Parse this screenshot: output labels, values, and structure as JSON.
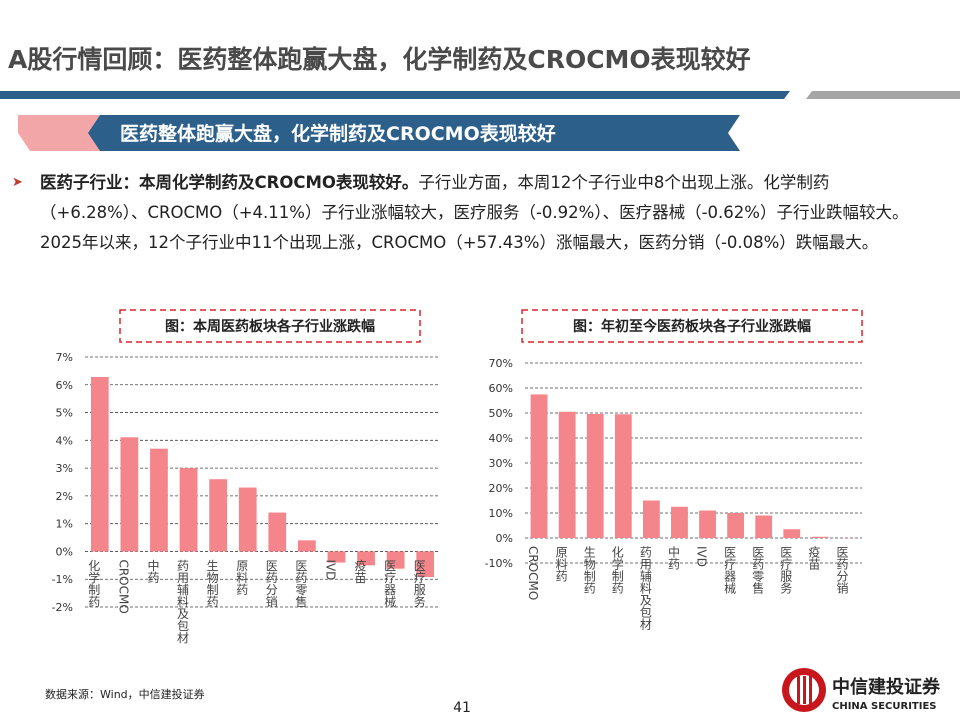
{
  "header": {
    "title": "A股行情回顾：医药整体跑赢大盘，化学制药及CROCMO表现较好"
  },
  "banner": "医药整体跑赢大盘，化学制药及CROCMO表现较好",
  "bullet": {
    "lead": "医药子行业：本周化学制药及CROCMO表现较好。",
    "text": "子行业方面，本周12个子行业中8个出现上涨。化学制药（+6.28%）、CROCMO（+4.11%）子行业涨幅较大，医疗服务（-0.92%）、医疗器械（-0.62%）子行业跌幅较大。2025年以来，12个子行业中11个出现上涨，CROCMO（+57.43%）涨幅最大，医药分销（-0.08%）跌幅最大。"
  },
  "chart_data": [
    {
      "type": "bar",
      "title": "图：本周医药板块各子行业涨跌幅",
      "categories": [
        "化学制药",
        "CROCMO",
        "中药",
        "药用辅料及包材",
        "生物制药",
        "原料药",
        "医药分销",
        "医药零售",
        "IVD",
        "疫苗",
        "医疗器械",
        "医疗服务"
      ],
      "values": [
        6.28,
        4.11,
        3.7,
        3.0,
        2.6,
        2.3,
        1.4,
        0.4,
        -0.4,
        -0.5,
        -0.62,
        -0.92
      ],
      "color": "#f4868b",
      "ylim": [
        -2,
        7
      ],
      "yticks": [
        {
          "value": -2,
          "label": "-2%"
        },
        {
          "value": -1,
          "label": "-1%"
        },
        {
          "value": 0,
          "label": "0%"
        },
        {
          "value": 1,
          "label": "1%"
        },
        {
          "value": 2,
          "label": "2%"
        },
        {
          "value": 3,
          "label": "3%"
        },
        {
          "value": 4,
          "label": "4%"
        },
        {
          "value": 5,
          "label": "5%"
        },
        {
          "value": 6,
          "label": "6%"
        },
        {
          "value": 7,
          "label": "7%"
        }
      ],
      "grid": true
    },
    {
      "type": "bar",
      "title": "图：年初至今医药板块各子行业涨跌幅",
      "categories": [
        "CROCMO",
        "原料药",
        "生物制药",
        "化学制药",
        "药用辅料及包材",
        "中药",
        "IVD",
        "医疗器械",
        "医药零售",
        "医疗服务",
        "疫苗",
        "医药分销"
      ],
      "values": [
        57.43,
        50.5,
        49.6,
        49.5,
        15,
        12.5,
        11,
        10,
        9,
        3.5,
        0.5,
        -0.08
      ],
      "color": "#f4868b",
      "ylim": [
        -10,
        70
      ],
      "yticks": [
        {
          "value": -10,
          "label": "-10%"
        },
        {
          "value": 0,
          "label": "0%"
        },
        {
          "value": 10,
          "label": "10%"
        },
        {
          "value": 20,
          "label": "20%"
        },
        {
          "value": 30,
          "label": "30%"
        },
        {
          "value": 40,
          "label": "40%"
        },
        {
          "value": 50,
          "label": "50%"
        },
        {
          "value": 60,
          "label": "60%"
        },
        {
          "value": 70,
          "label": "70%"
        }
      ],
      "grid": true
    }
  ],
  "source": "数据来源：Wind，中信建投证券",
  "page_number": "41",
  "logo": {
    "cn": "中信建投证券",
    "en": "CHINA SECURITIES"
  }
}
